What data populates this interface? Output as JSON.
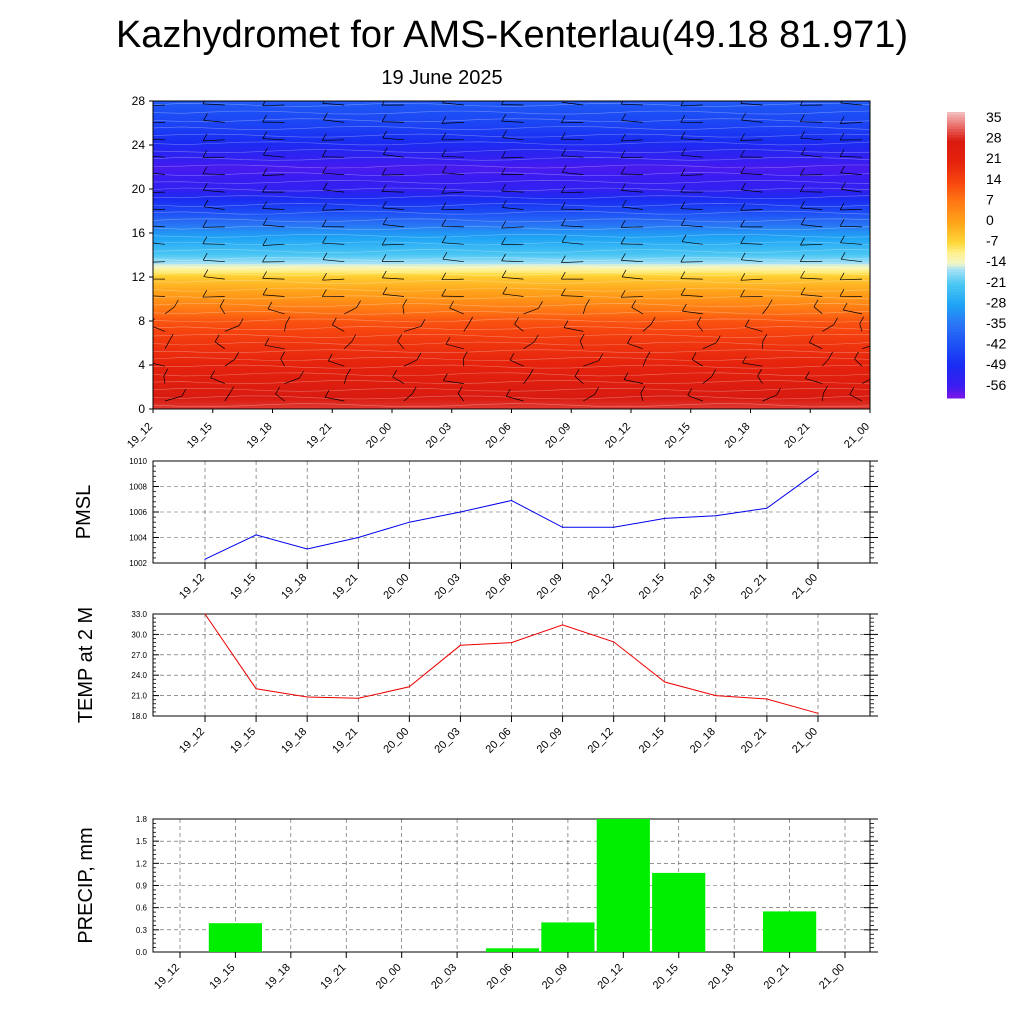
{
  "header": {
    "title": "Kazhydromet for AMS-Kenterlau(49.18 81.971)",
    "subtitle": "19 June 2025"
  },
  "time_labels": [
    "19_12",
    "19_15",
    "19_18",
    "19_21",
    "20_00",
    "20_03",
    "20_06",
    "20_09",
    "20_12",
    "20_15",
    "20_18",
    "20_21",
    "21_00"
  ],
  "chart_data": [
    {
      "type": "heatmap",
      "title": "",
      "xlabel": "",
      "ylabel": "",
      "x": [
        "19_12",
        "19_15",
        "19_18",
        "19_21",
        "20_00",
        "20_03",
        "20_06",
        "20_09",
        "20_12",
        "20_15",
        "20_18",
        "20_21",
        "21_00"
      ],
      "y_ticks": [
        0,
        4,
        8,
        12,
        16,
        20,
        24,
        28
      ],
      "ylim": [
        0,
        28
      ],
      "colorbar": {
        "labels": [
          "35",
          "28",
          "21",
          "14",
          "7",
          "0",
          "-7",
          "-14",
          "-21",
          "-28",
          "-35",
          "-42",
          "-49",
          "-56"
        ],
        "range": [
          -60,
          38
        ]
      },
      "temperature_profile": {
        "levels": [
          0,
          2,
          4,
          6,
          8,
          10,
          12,
          13,
          14,
          16,
          18,
          20,
          22,
          24,
          26,
          28
        ],
        "values": [
          30,
          26,
          21,
          17,
          12,
          3,
          -5,
          -14,
          -21,
          -30,
          -43,
          -54,
          -57,
          -50,
          -44,
          -40
        ]
      },
      "wind_barbs": true
    },
    {
      "type": "line",
      "title": "",
      "ylabel": "PMSL",
      "x": [
        "19_12",
        "19_15",
        "19_18",
        "19_21",
        "20_00",
        "20_03",
        "20_06",
        "20_09",
        "20_12",
        "20_15",
        "20_18",
        "20_21",
        "21_00"
      ],
      "series": [
        {
          "values": [
            1002.3,
            1004.2,
            1003.1,
            1004.0,
            1005.2,
            1006.0,
            1006.9,
            1004.8,
            1004.8,
            1005.5,
            1005.7,
            1006.3,
            1009.2
          ],
          "color": "#0000ee"
        }
      ],
      "y_ticks": [
        "1002",
        "1004",
        "1006",
        "1008",
        "1010"
      ],
      "ylim": [
        1002,
        1010
      ],
      "grid": true
    },
    {
      "type": "line",
      "title": "",
      "ylabel": "TEMP at 2 M",
      "x": [
        "19_12",
        "19_15",
        "19_18",
        "19_21",
        "20_00",
        "20_03",
        "20_06",
        "20_09",
        "20_12",
        "20_15",
        "20_18",
        "20_21",
        "21_00"
      ],
      "series": [
        {
          "values": [
            33.0,
            22.0,
            20.8,
            20.6,
            22.3,
            28.4,
            28.8,
            31.4,
            28.9,
            23.0,
            21.0,
            20.5,
            18.4
          ],
          "color": "#ee0000"
        }
      ],
      "y_ticks": [
        "18.0",
        "21.0",
        "24.0",
        "27.0",
        "30.0",
        "33.0"
      ],
      "ylim": [
        18,
        33
      ],
      "grid": true
    },
    {
      "type": "bar",
      "title": "",
      "ylabel": "PRECIP, mm",
      "categories": [
        "19_12",
        "19_15",
        "19_18",
        "19_21",
        "20_00",
        "20_03",
        "20_06",
        "20_09",
        "20_12",
        "20_15",
        "20_18",
        "20_21",
        "21_00"
      ],
      "values": [
        0,
        0.39,
        0,
        0,
        0,
        0,
        0.05,
        0.4,
        1.8,
        1.07,
        0,
        0.55,
        0
      ],
      "color": "#00ee00",
      "y_ticks": [
        "0.0",
        "0.3",
        "0.6",
        "0.9",
        "1.2",
        "1.5",
        "1.8"
      ],
      "ylim": [
        0,
        1.8
      ],
      "grid": true
    }
  ]
}
